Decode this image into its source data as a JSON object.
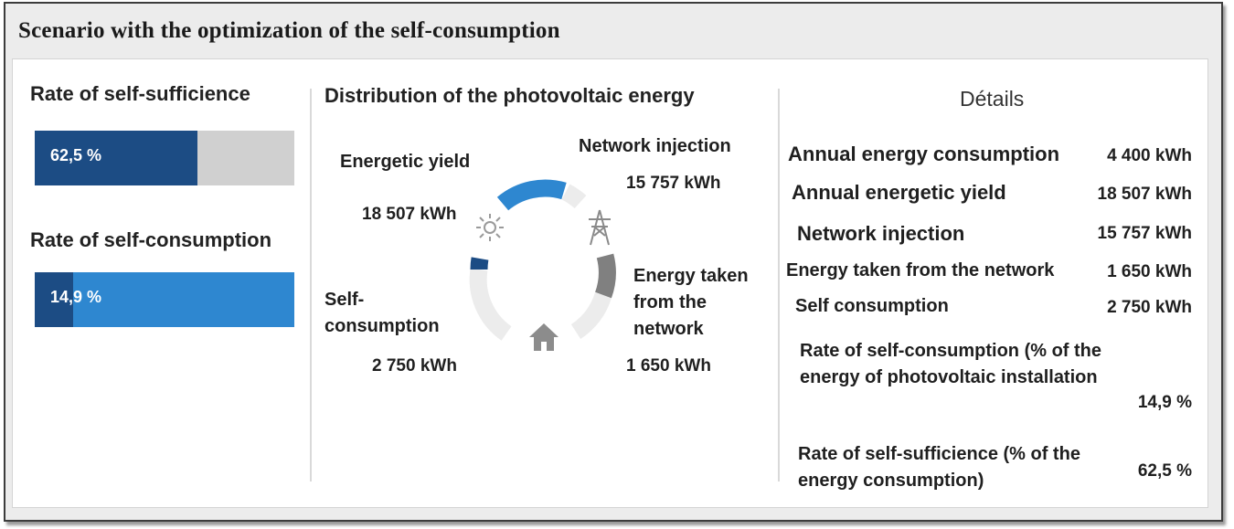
{
  "window": {
    "title": "Scenario with the optimization of the self-consumption"
  },
  "left": {
    "self_sufficience": {
      "label": "Rate of self-sufficience",
      "value_text": "62,5 %",
      "fraction": 0.625,
      "fill_color": "#1c4c84",
      "track_color": "#d0d0d0"
    },
    "self_consumption": {
      "label": "Rate of self-consumption",
      "value_text": "14,9 %",
      "fraction": 0.149,
      "fill_color": "#1c4c84",
      "track_color": "#2e87d0"
    }
  },
  "middle": {
    "title": "Distribution of the photovoltaic energy",
    "energetic_yield": {
      "label": "Energetic yield",
      "value": "18 507 kWh"
    },
    "network_injection": {
      "label": "Network injection",
      "value": "15 757 kWh"
    },
    "self_consumption": {
      "label_line1": "Self-",
      "label_line2": "consumption",
      "value": "2 750 kWh"
    },
    "energy_taken": {
      "label_line1": "Energy taken",
      "label_line2": "from the",
      "label_line3": "network",
      "value": "1 650 kWh"
    },
    "icons": [
      "sun-icon",
      "pylon-icon",
      "house-icon"
    ]
  },
  "details": {
    "title": "Détails",
    "rows": [
      {
        "label": "Annual energy consumption",
        "value": "4 400 kWh"
      },
      {
        "label": "Annual energetic yield",
        "value": "18 507 kWh"
      },
      {
        "label": "Network injection",
        "value": "15 757 kWh"
      },
      {
        "label": "Energy taken from the network",
        "value": "1 650 kWh"
      },
      {
        "label": "Self consumption",
        "value": "2 750 kWh"
      },
      {
        "label": "Rate of self-consumption (% of the energy of photovoltaic installation",
        "value": "14,9 %"
      },
      {
        "label": "Rate of self-sufficience (% of the energy consumption)",
        "value": "62,5 %"
      }
    ]
  }
}
